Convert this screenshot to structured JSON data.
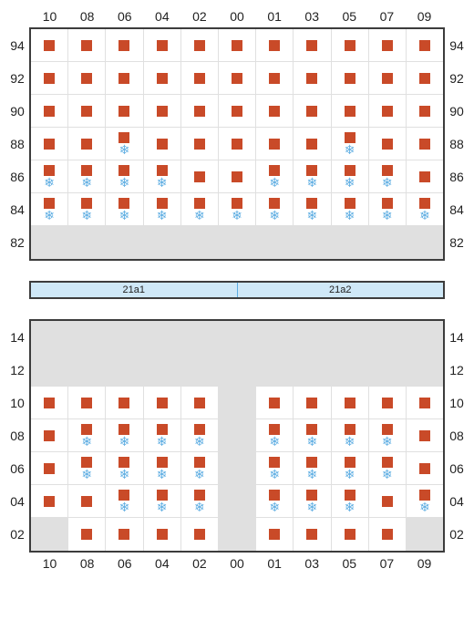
{
  "columns": [
    "10",
    "08",
    "06",
    "04",
    "02",
    "00",
    "01",
    "03",
    "05",
    "07",
    "09"
  ],
  "divider_labels": [
    "21a1",
    "21a2"
  ],
  "colors": {
    "square": "#c94a28",
    "snow": "#5dade2",
    "empty_bg": "#e0e0e0",
    "border": "#3c3c3c",
    "cell_border": "#e0e0e0",
    "divider_bg": "#cfe8f7"
  },
  "top": {
    "rows": [
      "94",
      "92",
      "90",
      "88",
      "86",
      "84",
      "82"
    ],
    "cells": [
      [
        {
          "s": 1
        },
        {
          "s": 1
        },
        {
          "s": 1
        },
        {
          "s": 1
        },
        {
          "s": 1
        },
        {
          "s": 1
        },
        {
          "s": 1
        },
        {
          "s": 1
        },
        {
          "s": 1
        },
        {
          "s": 1
        },
        {
          "s": 1
        }
      ],
      [
        {
          "s": 1
        },
        {
          "s": 1
        },
        {
          "s": 1
        },
        {
          "s": 1
        },
        {
          "s": 1
        },
        {
          "s": 1
        },
        {
          "s": 1
        },
        {
          "s": 1
        },
        {
          "s": 1
        },
        {
          "s": 1
        },
        {
          "s": 1
        }
      ],
      [
        {
          "s": 1
        },
        {
          "s": 1
        },
        {
          "s": 1
        },
        {
          "s": 1
        },
        {
          "s": 1
        },
        {
          "s": 1
        },
        {
          "s": 1
        },
        {
          "s": 1
        },
        {
          "s": 1
        },
        {
          "s": 1
        },
        {
          "s": 1
        }
      ],
      [
        {
          "s": 1
        },
        {
          "s": 1
        },
        {
          "s": 1,
          "f": 1
        },
        {
          "s": 1
        },
        {
          "s": 1
        },
        {
          "s": 1
        },
        {
          "s": 1
        },
        {
          "s": 1
        },
        {
          "s": 1,
          "f": 1
        },
        {
          "s": 1
        },
        {
          "s": 1
        }
      ],
      [
        {
          "s": 1,
          "f": 1
        },
        {
          "s": 1,
          "f": 1
        },
        {
          "s": 1,
          "f": 1
        },
        {
          "s": 1,
          "f": 1
        },
        {
          "s": 1
        },
        {
          "s": 1
        },
        {
          "s": 1,
          "f": 1
        },
        {
          "s": 1,
          "f": 1
        },
        {
          "s": 1,
          "f": 1
        },
        {
          "s": 1,
          "f": 1
        },
        {
          "s": 1
        }
      ],
      [
        {
          "s": 1,
          "f": 1
        },
        {
          "s": 1,
          "f": 1
        },
        {
          "s": 1,
          "f": 1
        },
        {
          "s": 1,
          "f": 1
        },
        {
          "s": 1,
          "f": 1
        },
        {
          "s": 1,
          "f": 1
        },
        {
          "s": 1,
          "f": 1
        },
        {
          "s": 1,
          "f": 1
        },
        {
          "s": 1,
          "f": 1
        },
        {
          "s": 1,
          "f": 1
        },
        {
          "s": 1,
          "f": 1
        }
      ],
      [
        {
          "e": 1
        },
        {
          "e": 1
        },
        {
          "e": 1
        },
        {
          "e": 1
        },
        {
          "e": 1
        },
        {
          "e": 1
        },
        {
          "e": 1
        },
        {
          "e": 1
        },
        {
          "e": 1
        },
        {
          "e": 1
        },
        {
          "e": 1
        }
      ]
    ]
  },
  "bottom": {
    "rows": [
      "14",
      "12",
      "10",
      "08",
      "06",
      "04",
      "02"
    ],
    "cells": [
      [
        {
          "e": 1
        },
        {
          "e": 1
        },
        {
          "e": 1
        },
        {
          "e": 1
        },
        {
          "e": 1
        },
        {
          "e": 1
        },
        {
          "e": 1
        },
        {
          "e": 1
        },
        {
          "e": 1
        },
        {
          "e": 1
        },
        {
          "e": 1
        }
      ],
      [
        {
          "e": 1
        },
        {
          "e": 1
        },
        {
          "e": 1
        },
        {
          "e": 1
        },
        {
          "e": 1
        },
        {
          "e": 1
        },
        {
          "e": 1
        },
        {
          "e": 1
        },
        {
          "e": 1
        },
        {
          "e": 1
        },
        {
          "e": 1
        }
      ],
      [
        {
          "s": 1
        },
        {
          "s": 1
        },
        {
          "s": 1
        },
        {
          "s": 1
        },
        {
          "s": 1
        },
        {
          "e": 1
        },
        {
          "s": 1
        },
        {
          "s": 1
        },
        {
          "s": 1
        },
        {
          "s": 1
        },
        {
          "s": 1
        }
      ],
      [
        {
          "s": 1
        },
        {
          "s": 1,
          "f": 1
        },
        {
          "s": 1,
          "f": 1
        },
        {
          "s": 1,
          "f": 1
        },
        {
          "s": 1,
          "f": 1
        },
        {
          "e": 1
        },
        {
          "s": 1,
          "f": 1
        },
        {
          "s": 1,
          "f": 1
        },
        {
          "s": 1,
          "f": 1
        },
        {
          "s": 1,
          "f": 1
        },
        {
          "s": 1
        }
      ],
      [
        {
          "s": 1
        },
        {
          "s": 1,
          "f": 1
        },
        {
          "s": 1,
          "f": 1
        },
        {
          "s": 1,
          "f": 1
        },
        {
          "s": 1,
          "f": 1
        },
        {
          "e": 1
        },
        {
          "s": 1,
          "f": 1
        },
        {
          "s": 1,
          "f": 1
        },
        {
          "s": 1,
          "f": 1
        },
        {
          "s": 1,
          "f": 1
        },
        {
          "s": 1
        }
      ],
      [
        {
          "s": 1
        },
        {
          "s": 1
        },
        {
          "s": 1,
          "f": 1
        },
        {
          "s": 1,
          "f": 1
        },
        {
          "s": 1,
          "f": 1
        },
        {
          "e": 1
        },
        {
          "s": 1,
          "f": 1
        },
        {
          "s": 1,
          "f": 1
        },
        {
          "s": 1,
          "f": 1
        },
        {
          "s": 1
        },
        {
          "s": 1,
          "f": 1
        }
      ],
      [
        {
          "e": 1
        },
        {
          "s": 1
        },
        {
          "s": 1
        },
        {
          "s": 1
        },
        {
          "s": 1
        },
        {
          "e": 1
        },
        {
          "s": 1
        },
        {
          "s": 1
        },
        {
          "s": 1
        },
        {
          "s": 1
        },
        {
          "e": 1
        }
      ]
    ]
  }
}
